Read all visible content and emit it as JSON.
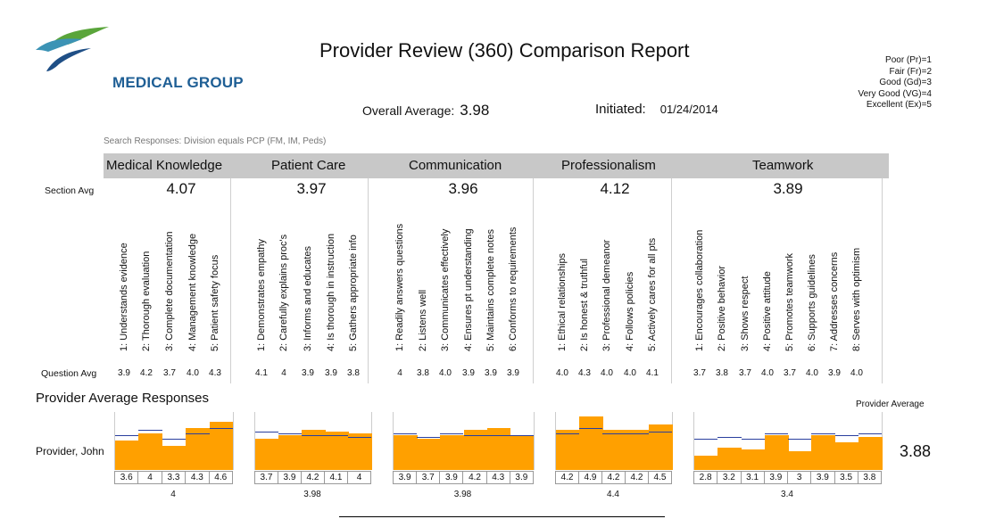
{
  "report": {
    "title": "Provider Review (360) Comparison Report",
    "brand": "MEDICAL GROUP",
    "overall_label": "Overall Average:",
    "overall_value": "3.98",
    "initiated_label": "Initiated:",
    "initiated_value": "01/24/2014",
    "search_text": "Search Responses: Division equals PCP (FM, IM, Peds)",
    "section_avg_label": "Section Avg",
    "question_avg_label": "Question Avg",
    "provider_avg_responses_label": "Provider Average Responses",
    "provider_average_label": "Provider Average",
    "provider_name": "Provider, John",
    "provider_average_value": "3.88"
  },
  "legend": [
    "Poor (Pr)=1",
    "Fair (Fr)=2",
    "Good (Gd)=3",
    "Very Good (VG)=4",
    "Excellent (Ex)=5"
  ],
  "colors": {
    "bar": "#ffa000",
    "reference_line": "#2a3f9e",
    "header_band": "#c8c8c8",
    "brand": "#1f5f95"
  },
  "sections": [
    {
      "title": "Medical Knowledge",
      "avg": "4.07",
      "score": "4",
      "questions": [
        "1: Understands evidence",
        "2: Thorough evaluation",
        "3: Complete documentation",
        "4: Management knowledge",
        "5: Patient safety focus"
      ],
      "question_avgs": [
        "3.9",
        "4.2",
        "3.7",
        "4.0",
        "4.3"
      ],
      "provider_values": [
        "3.6",
        "4",
        "3.3",
        "4.3",
        "4.6"
      ]
    },
    {
      "title": "Patient Care",
      "avg": "3.97",
      "score": "3.98",
      "questions": [
        "1: Demonstrates empathy",
        "2: Carefully explains proc's",
        "3: Informs and educates",
        "4: Is thorough in instruction",
        "5: Gathers appropriate info"
      ],
      "question_avgs": [
        "4.1",
        "4",
        "3.9",
        "3.9",
        "3.8"
      ],
      "provider_values": [
        "3.7",
        "3.9",
        "4.2",
        "4.1",
        "4"
      ]
    },
    {
      "title": "Communication",
      "avg": "3.96",
      "score": "3.98",
      "questions": [
        "1: Readily answers questions",
        "2: Listens well",
        "3: Communicates effectively",
        "4: Ensures pt understanding",
        "5: Maintains complete notes",
        "6: Conforms to requirements"
      ],
      "question_avgs": [
        "4",
        "3.8",
        "4.0",
        "3.9",
        "3.9",
        "3.9"
      ],
      "provider_values": [
        "3.9",
        "3.7",
        "3.9",
        "4.2",
        "4.3",
        "3.9"
      ]
    },
    {
      "title": "Professionalism",
      "avg": "4.12",
      "score": "4.4",
      "questions": [
        "1: Ethical relationships",
        "2: Is honest & truthful",
        "3: Professional demeanor",
        "4: Follows policies",
        "5: Actively cares for all pts"
      ],
      "question_avgs": [
        "4.0",
        "4.3",
        "4.0",
        "4.0",
        "4.1"
      ],
      "provider_values": [
        "4.2",
        "4.9",
        "4.2",
        "4.2",
        "4.5"
      ]
    },
    {
      "title": "Teamwork",
      "avg": "3.89",
      "score": "3.4",
      "questions": [
        "1: Encourages collaboration",
        "2: Positive behavior",
        "3: Shows respect",
        "4: Positive attitude",
        "5: Promotes teamwork",
        "6: Supports guidelines",
        "7: Addresses concerns",
        "8: Serves with optimism"
      ],
      "question_avgs": [
        "3.7",
        "3.8",
        "3.7",
        "4.0",
        "3.7",
        "4.0",
        "3.9",
        "4.0"
      ],
      "provider_values": [
        "2.8",
        "3.2",
        "3.1",
        "3.9",
        "3",
        "3.9",
        "3.5",
        "3.8"
      ]
    }
  ]
}
